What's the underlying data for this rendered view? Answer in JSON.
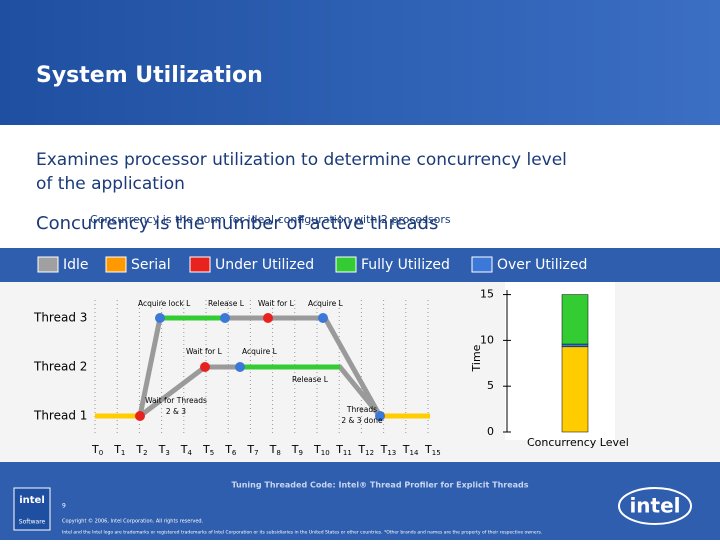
{
  "header": {
    "title": "System Utilization"
  },
  "body": {
    "line1": "Examines processor utilization to determine concurrency level",
    "line2": "of the application",
    "concurrency_big": "Concurrency is the number of active threads",
    "concurrency_small": "Concurrency is the norm for ideal configuration with 2 processors"
  },
  "legend": [
    {
      "label": "Idle",
      "color": "#a0a0a0"
    },
    {
      "label": "Serial",
      "color": "#ff9900"
    },
    {
      "label": "Under Utilized",
      "color": "#e8231f"
    },
    {
      "label": "Fully Utilized",
      "color": "#33cc33"
    },
    {
      "label": "Over Utilized",
      "color": "#3b78d8"
    }
  ],
  "threads": [
    "Thread 3",
    "Thread 2",
    "Thread 1"
  ],
  "annotations": [
    {
      "lines": [
        "Acquire lock L"
      ]
    },
    {
      "lines": [
        "Release L"
      ]
    },
    {
      "lines": [
        "Wait for L"
      ]
    },
    {
      "lines": [
        "Acquire L"
      ]
    },
    {
      "lines": [
        "Wait for L"
      ]
    },
    {
      "lines": [
        "Acquire L"
      ]
    },
    {
      "lines": [
        "Release L"
      ]
    },
    {
      "lines": [
        "Wait for Threads",
        "2 & 3"
      ]
    },
    {
      "lines": [
        "Threads",
        "2 & 3 done"
      ]
    }
  ],
  "timeline": [
    {
      "base": "T",
      "sub": "0"
    },
    {
      "base": "T",
      "sub": "1"
    },
    {
      "base": "T",
      "sub": "2"
    },
    {
      "base": "T",
      "sub": "3"
    },
    {
      "base": "T",
      "sub": "4"
    },
    {
      "base": "T",
      "sub": "5"
    },
    {
      "base": "T",
      "sub": "6"
    },
    {
      "base": "T",
      "sub": "7"
    },
    {
      "base": "T",
      "sub": "8"
    },
    {
      "base": "T",
      "sub": "9"
    },
    {
      "base": "T",
      "sub": "10"
    },
    {
      "base": "T",
      "sub": "11"
    },
    {
      "base": "T",
      "sub": "12"
    },
    {
      "base": "T",
      "sub": "13"
    },
    {
      "base": "T",
      "sub": "14"
    },
    {
      "base": "T",
      "sub": "15"
    }
  ],
  "concurrency": {
    "ylabel": "Time",
    "xlabel": "Concurrency Level",
    "ylim": [
      0,
      15.5
    ],
    "yticks": [
      0,
      5,
      10,
      15
    ],
    "segments": [
      {
        "color": "#ffcc00",
        "value": 9.3
      },
      {
        "color": "#3b78d8",
        "value": 0.3
      },
      {
        "color": "#33cc33",
        "value": 5.4
      }
    ]
  },
  "footer": {
    "course": "Tuning Threaded Code: Intel® Thread Profiler for Explicit Threads",
    "page": "9",
    "copyright": "Copyright © 2006, Intel Corporation. All rights reserved.",
    "trademark": "Intel and the Intel logo are trademarks or registered trademarks of Intel Corporation or its subsidiaries in the United States or other countries. *Other brands and names are the property of their respective owners.",
    "logo_small": "intel",
    "logo_software": "Software",
    "logo_big": "intel"
  }
}
